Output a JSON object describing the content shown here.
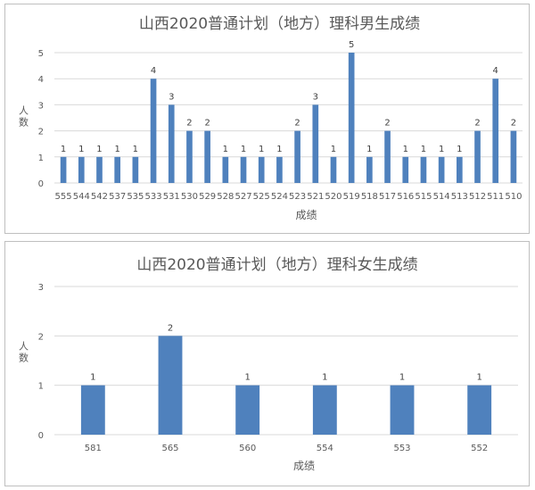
{
  "chart_data": [
    {
      "type": "bar",
      "title": "山西2020普通计划（地方）理科男生成绩",
      "xlabel": "成绩",
      "ylabel": "人数",
      "ylim": [
        0,
        5
      ],
      "yticks": [
        "0",
        "1",
        "2",
        "3",
        "4",
        "5"
      ],
      "grid": true,
      "categories": [
        "555",
        "544",
        "542",
        "537",
        "535",
        "533",
        "531",
        "530",
        "529",
        "528",
        "527",
        "525",
        "524",
        "523",
        "521",
        "520",
        "519",
        "518",
        "517",
        "516",
        "515",
        "514",
        "513",
        "512",
        "511",
        "510"
      ],
      "values": [
        1,
        1,
        1,
        1,
        1,
        4,
        3,
        2,
        2,
        1,
        1,
        1,
        1,
        2,
        3,
        1,
        5,
        1,
        2,
        1,
        1,
        1,
        1,
        2,
        4,
        2
      ],
      "bar_color": "#4f81bd"
    },
    {
      "type": "bar",
      "title": "山西2020普通计划（地方）理科女生成绩",
      "xlabel": "成绩",
      "ylabel": "人数",
      "ylim": [
        0,
        3
      ],
      "yticks": [
        "0",
        "1",
        "2",
        "3"
      ],
      "grid": true,
      "categories": [
        "581",
        "565",
        "560",
        "554",
        "553",
        "552"
      ],
      "values": [
        1,
        2,
        1,
        1,
        1,
        1
      ],
      "bar_color": "#4f81bd"
    }
  ]
}
